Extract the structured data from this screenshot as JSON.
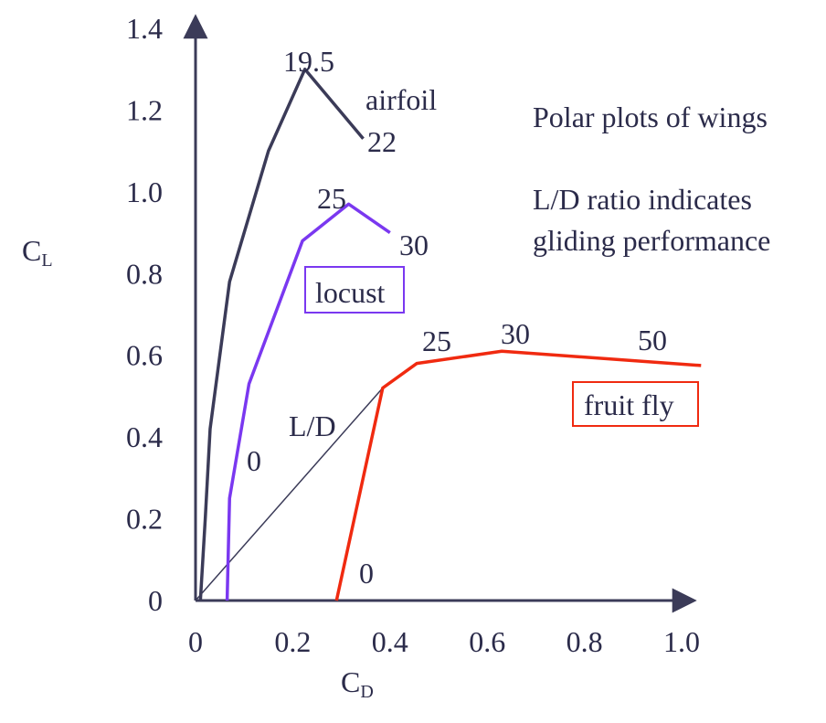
{
  "chart_data": {
    "type": "line",
    "xlabel": {
      "main": "C",
      "sub": "D"
    },
    "ylabel": {
      "main": "C",
      "sub": "L"
    },
    "xlim": [
      0,
      1.0
    ],
    "ylim": [
      0,
      1.4
    ],
    "xticks": [
      "0",
      "0.2",
      "0.4",
      "0.6",
      "0.8",
      "1.0"
    ],
    "yticks": [
      "0",
      "0.2",
      "0.4",
      "0.6",
      "0.8",
      "1.0",
      "1.2",
      "1.4"
    ],
    "grid": false,
    "series": [
      {
        "name": "airfoil",
        "color": "#3b3b58",
        "points": [
          [
            0.01,
            0.0
          ],
          [
            0.02,
            0.2
          ],
          [
            0.03,
            0.42
          ],
          [
            0.07,
            0.78
          ],
          [
            0.15,
            1.1
          ],
          [
            0.225,
            1.3
          ],
          [
            0.345,
            1.13
          ]
        ],
        "labels": [
          "19.5",
          "22"
        ]
      },
      {
        "name": "locust",
        "color": "#7a38f0",
        "points": [
          [
            0.065,
            0.0
          ],
          [
            0.07,
            0.25
          ],
          [
            0.11,
            0.53
          ],
          [
            0.22,
            0.88
          ],
          [
            0.315,
            0.97
          ],
          [
            0.4,
            0.9
          ]
        ],
        "labels": [
          "0",
          "25",
          "30"
        ]
      },
      {
        "name": "fruit fly",
        "color": "#f02a10",
        "points": [
          [
            0.29,
            0.0
          ],
          [
            0.385,
            0.52
          ],
          [
            0.455,
            0.58
          ],
          [
            0.63,
            0.61
          ],
          [
            1.04,
            0.575
          ]
        ],
        "labels": [
          "0",
          "25",
          "30",
          "50"
        ]
      }
    ],
    "ld_line": {
      "label": "L/D",
      "points": [
        [
          0.0,
          0.0
        ],
        [
          0.385,
          0.52
        ]
      ],
      "color": "#3b3b58"
    },
    "annotations": [
      "Polar plots of wings",
      "L/D ratio indicates",
      "gliding performance"
    ]
  }
}
